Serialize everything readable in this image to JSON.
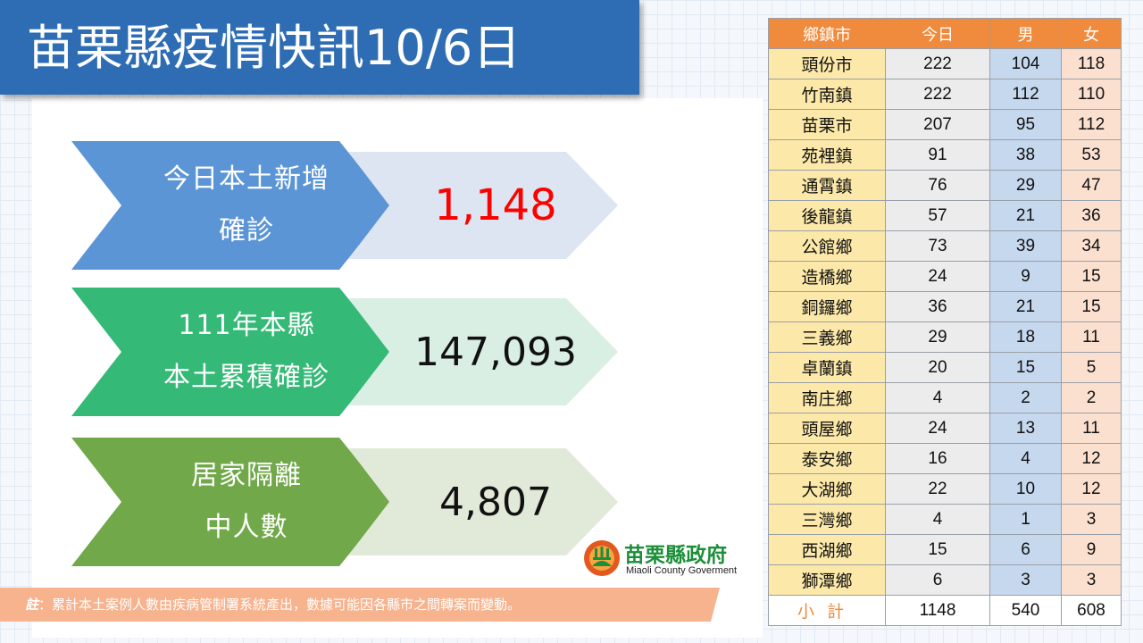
{
  "title": "苗栗縣疫情快訊10/6日",
  "cards": [
    {
      "label_lines": [
        "今日本土新增",
        "確診"
      ],
      "value": "1,148"
    },
    {
      "label_lines": [
        "111年本縣",
        "本土累積確診"
      ],
      "value": "147,093"
    },
    {
      "label_lines": [
        "居家隔離",
        "中人數"
      ],
      "value": "4,807"
    }
  ],
  "note": {
    "label": "註",
    "text": "：累計本土案例人數由疾病管制署系統產出，數據可能因各縣市之間轉案而變動。"
  },
  "logo": {
    "name_cn": "苗栗縣政府",
    "name_en": "Miaoli County Goverment"
  },
  "table": {
    "headers": [
      "鄉鎮市",
      "今日",
      "男",
      "女"
    ],
    "rows": [
      {
        "town": "頭份市",
        "today": "222",
        "male": "104",
        "female": "118"
      },
      {
        "town": "竹南鎮",
        "today": "222",
        "male": "112",
        "female": "110"
      },
      {
        "town": "苗栗市",
        "today": "207",
        "male": "95",
        "female": "112"
      },
      {
        "town": "苑裡鎮",
        "today": "91",
        "male": "38",
        "female": "53"
      },
      {
        "town": "通霄鎮",
        "today": "76",
        "male": "29",
        "female": "47"
      },
      {
        "town": "後龍鎮",
        "today": "57",
        "male": "21",
        "female": "36"
      },
      {
        "town": "公館鄉",
        "today": "73",
        "male": "39",
        "female": "34"
      },
      {
        "town": "造橋鄉",
        "today": "24",
        "male": "9",
        "female": "15"
      },
      {
        "town": "銅鑼鄉",
        "today": "36",
        "male": "21",
        "female": "15"
      },
      {
        "town": "三義鄉",
        "today": "29",
        "male": "18",
        "female": "11"
      },
      {
        "town": "卓蘭鎮",
        "today": "20",
        "male": "15",
        "female": "5"
      },
      {
        "town": "南庄鄉",
        "today": "4",
        "male": "2",
        "female": "2"
      },
      {
        "town": "頭屋鄉",
        "today": "24",
        "male": "13",
        "female": "11"
      },
      {
        "town": "泰安鄉",
        "today": "16",
        "male": "4",
        "female": "12"
      },
      {
        "town": "大湖鄉",
        "today": "22",
        "male": "10",
        "female": "12"
      },
      {
        "town": "三灣鄉",
        "today": "4",
        "male": "1",
        "female": "3"
      },
      {
        "town": "西湖鄉",
        "today": "15",
        "male": "6",
        "female": "9"
      },
      {
        "town": "獅潭鄉",
        "today": "6",
        "male": "3",
        "female": "3"
      }
    ],
    "total": {
      "town": "小計",
      "today": "1148",
      "male": "540",
      "female": "608"
    }
  },
  "colors": {
    "title_bg": "#2e6db4",
    "card1_arrow": "#5b95d5",
    "card2_arrow": "#35b977",
    "card3_arrow": "#71a84a",
    "highlight_value": "#ff0000",
    "table_header": "#f08a3c",
    "town_cell": "#fce8a8",
    "male_cell": "#c6d8ee",
    "female_cell": "#fbe0d0",
    "note_bar": "#f7b38e",
    "logo_text": "#1d8f3a"
  }
}
